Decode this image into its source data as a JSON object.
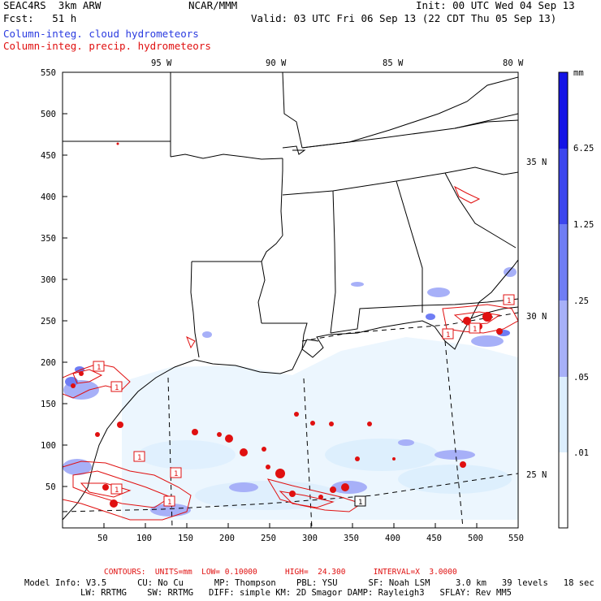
{
  "header": {
    "model": "SEAC4RS  3km ARW",
    "org": "NCAR/MMM",
    "init": "Init: 00 UTC Wed 04 Sep 13",
    "fcst": "Fcst:   51 h",
    "valid": "Valid: 03 UTC Fri 06 Sep 13 (22 CDT Thu 05 Sep 13)",
    "legend_cloud": "Column-integ. cloud hydrometeors",
    "legend_precip": "Column-integ. precip. hydrometeors"
  },
  "map": {
    "lon_labels": [
      "95 W",
      "90 W",
      "85 W",
      "80 W"
    ],
    "lat_labels": [
      "35 N",
      "30 N",
      "25 N"
    ],
    "x_ticks": [
      "50",
      "100",
      "150",
      "200",
      "250",
      "300",
      "350",
      "400",
      "450",
      "500",
      "550"
    ],
    "y_ticks": [
      "550",
      "500",
      "450",
      "400",
      "350",
      "300",
      "250",
      "200",
      "150",
      "100",
      "50"
    ],
    "contour_label": "1"
  },
  "colorbar": {
    "units": "mm",
    "labels": [
      "6.25",
      "1.25",
      ".25",
      ".05",
      ".01"
    ],
    "colors": [
      "#1414e6",
      "#3c46ee",
      "#6f7df4",
      "#a7b0f8",
      "#dceefd",
      "#ffffff"
    ]
  },
  "footer": {
    "contours": "CONTOURS:  UNITS=mm  LOW= 0.10000      HIGH=  24.300      INTERVAL=X  3.0000",
    "info1": "Model Info: V3.5      CU: No Cu      MP: Thompson    PBL: YSU      SF: Noah LSM     3.0 km   39 levels   18 sec",
    "info2": "LW: RRTMG    SW: RRTMG   DIFF: simple KM: 2D Smagor DAMP: Rayleigh3   SFLAY: Rev MM5"
  }
}
